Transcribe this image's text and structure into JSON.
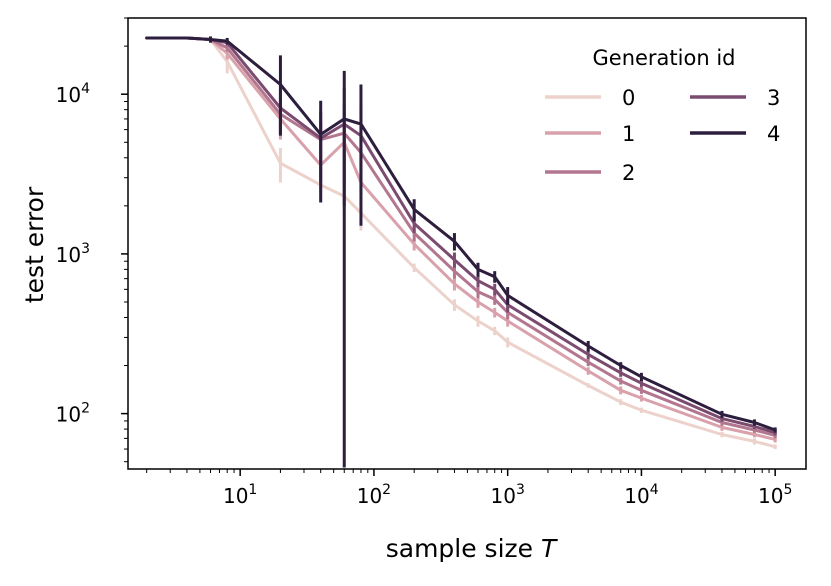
{
  "chart_data": {
    "type": "line",
    "xscale": "log",
    "yscale": "log",
    "xlim": [
      1.45,
      170000
    ],
    "ylim": [
      45,
      30000
    ],
    "xlabel": "sample size",
    "xlabel_var": "T",
    "ylabel": "test error",
    "x_ticks": [
      {
        "value": 10,
        "base": "10",
        "exp": "1"
      },
      {
        "value": 100,
        "base": "10",
        "exp": "2"
      },
      {
        "value": 1000,
        "base": "10",
        "exp": "3"
      },
      {
        "value": 10000,
        "base": "10",
        "exp": "4"
      },
      {
        "value": 100000,
        "base": "10",
        "exp": "5"
      }
    ],
    "y_ticks": [
      {
        "value": 100,
        "base": "10",
        "exp": "2"
      },
      {
        "value": 1000,
        "base": "10",
        "exp": "3"
      },
      {
        "value": 10000,
        "base": "10",
        "exp": "4"
      }
    ],
    "legend": {
      "title": "Generation id",
      "location": "upper right",
      "columns": 2
    },
    "x": [
      2,
      4,
      6,
      8,
      20,
      40,
      60,
      80,
      200,
      400,
      600,
      800,
      1000,
      4000,
      7000,
      10000,
      40000,
      70000,
      100000
    ],
    "series": [
      {
        "name": "0",
        "color": "#ecd2cb",
        "values": [
          22500,
          22500,
          22000,
          16000,
          3700,
          2700,
          2300,
          1800,
          820,
          480,
          380,
          330,
          280,
          150,
          118,
          105,
          74,
          67,
          62
        ],
        "errors": [
          0,
          0,
          0,
          2500,
          900,
          600,
          500,
          400,
          50,
          40,
          30,
          20,
          20,
          5,
          5,
          4,
          3,
          3,
          2
        ]
      },
      {
        "name": "1",
        "color": "#d9a1ab",
        "values": [
          22500,
          22500,
          22000,
          18000,
          7000,
          3600,
          5000,
          2800,
          1150,
          650,
          500,
          430,
          380,
          185,
          140,
          125,
          82,
          74,
          69
        ],
        "errors": [
          0,
          0,
          0,
          1500,
          1800,
          1200,
          3000,
          1000,
          100,
          60,
          40,
          30,
          30,
          10,
          8,
          6,
          4,
          3,
          3
        ]
      },
      {
        "name": "2",
        "color": "#b2768f",
        "values": [
          22500,
          22500,
          22000,
          19500,
          7500,
          5200,
          5700,
          4300,
          1350,
          780,
          580,
          520,
          430,
          210,
          160,
          140,
          88,
          79,
          73
        ],
        "errors": [
          0,
          0,
          0,
          1000,
          2000,
          1500,
          3000,
          1500,
          150,
          80,
          50,
          40,
          40,
          12,
          8,
          7,
          4,
          3,
          3
        ]
      },
      {
        "name": "3",
        "color": "#7b4b70",
        "values": [
          22500,
          22500,
          22000,
          21000,
          8200,
          5300,
          6500,
          5500,
          1550,
          920,
          680,
          600,
          480,
          235,
          180,
          155,
          93,
          83,
          76
        ],
        "errors": [
          0,
          0,
          500,
          800,
          2500,
          2500,
          4500,
          3000,
          200,
          100,
          60,
          50,
          50,
          15,
          10,
          8,
          4,
          3,
          3
        ]
      },
      {
        "name": "4",
        "color": "#2d1e3e",
        "values": [
          22500,
          22500,
          22000,
          21500,
          11500,
          5600,
          7000,
          6500,
          1900,
          1200,
          800,
          720,
          550,
          265,
          200,
          170,
          99,
          88,
          79
        ],
        "errors": [
          0,
          0,
          1000,
          1000,
          6000,
          3500,
          7000,
          5000,
          300,
          150,
          80,
          60,
          70,
          20,
          10,
          10,
          5,
          4,
          3
        ]
      }
    ]
  }
}
